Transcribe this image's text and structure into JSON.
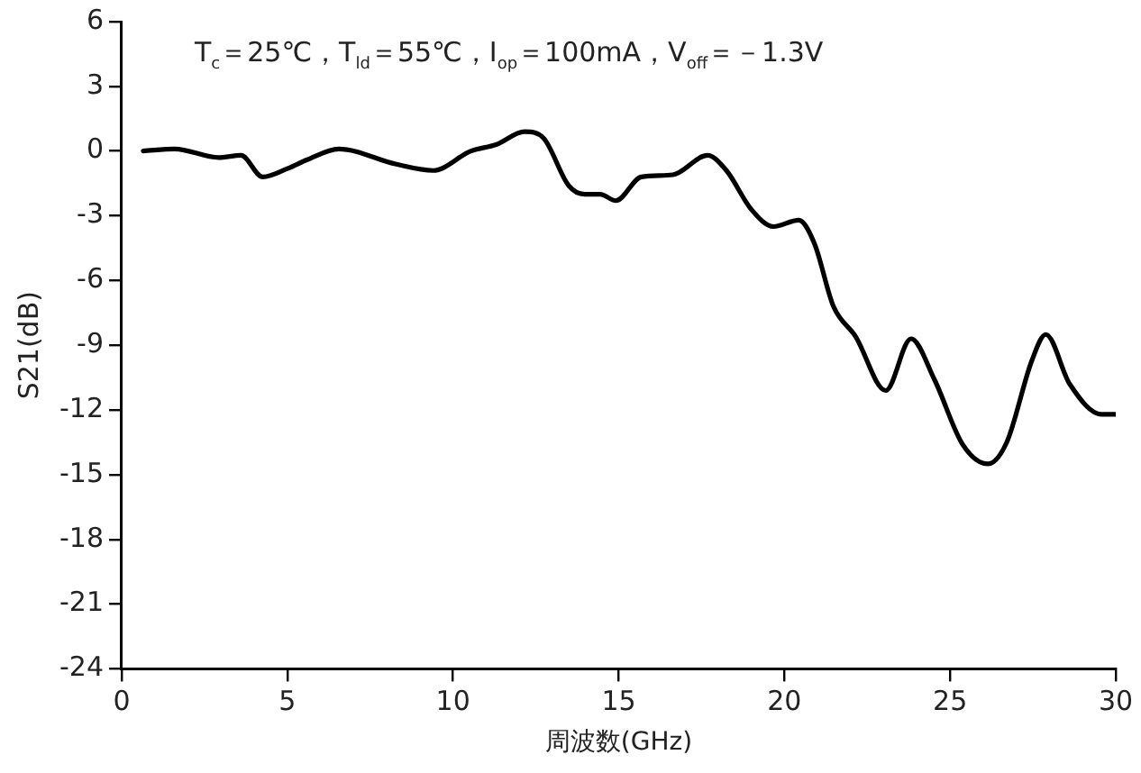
{
  "chart_data": {
    "type": "line",
    "xlabel": "周波数(GHz)",
    "ylabel": "S21(dB)",
    "annotations": [
      "T$_{c}$＝25℃，T$_{ld}$＝55℃，I$_{op}$＝100mA，V$_{off}$＝－1.3V"
    ],
    "xlim": [
      0,
      30
    ],
    "xticks": [
      0,
      5,
      10,
      15,
      20,
      25,
      30
    ],
    "ylim": [
      -24,
      6
    ],
    "yticks": [
      -24,
      -21,
      -18,
      -15,
      -12,
      -9,
      -6,
      -3,
      0,
      3,
      6
    ],
    "grid": false,
    "legend": false,
    "marker": "none",
    "line_style": "solid",
    "series": [
      {
        "color": "#000000",
        "x": [
          0.65,
          1.6,
          2.93,
          3.6,
          4.26,
          5.02,
          5.6,
          6.55,
          8.26,
          9.4,
          10.54,
          11.3,
          12.16,
          12.73,
          13.49,
          13.97,
          14.44,
          14.91,
          15.68,
          16.63,
          17.68,
          18.25,
          19.0,
          19.67,
          20.43,
          20.91,
          21.48,
          22.15,
          23.06,
          23.82,
          24.53,
          25.38,
          26.14,
          26.71,
          27.47,
          27.89,
          28.61,
          29.57,
          30
        ],
        "values": [
          0,
          0.1,
          -0.3,
          -0.2,
          -1.2,
          -0.8,
          -0.4,
          0.1,
          -0.6,
          -0.9,
          0,
          0.3,
          0.9,
          0.6,
          -1.6,
          -2.0,
          -2.0,
          -2.3,
          -1.2,
          -1.1,
          -0.2,
          -0.9,
          -2.7,
          -3.5,
          -3.2,
          -4.3,
          -7.2,
          -8.6,
          -11.1,
          -8.7,
          -10.6,
          -13.6,
          -14.5,
          -13.5,
          -9.7,
          -8.5,
          -10.8,
          -12.2,
          -12.2
        ]
      }
    ]
  }
}
